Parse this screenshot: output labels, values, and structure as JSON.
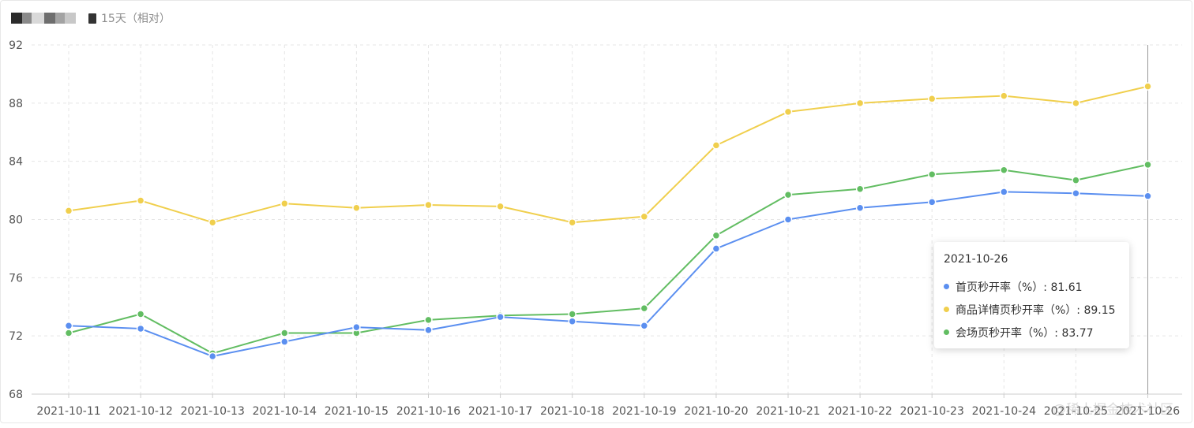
{
  "header": {
    "range_label": "15天（相对）"
  },
  "watermark": "@稀土掘金技术社区",
  "colors": {
    "blue": "#5b8ff0",
    "yellow": "#f0cf4d",
    "green": "#62bd62",
    "grid": "#e5e5e5",
    "axis": "#cccccc"
  },
  "chart_data": {
    "type": "line",
    "categories": [
      "2021-10-11",
      "2021-10-12",
      "2021-10-13",
      "2021-10-14",
      "2021-10-15",
      "2021-10-16",
      "2021-10-17",
      "2021-10-18",
      "2021-10-19",
      "2021-10-20",
      "2021-10-21",
      "2021-10-22",
      "2021-10-23",
      "2021-10-24",
      "2021-10-25",
      "2021-10-26"
    ],
    "yticks": [
      68,
      72,
      76,
      80,
      84,
      88,
      92
    ],
    "ylim": [
      68,
      92
    ],
    "grid": true,
    "series": [
      {
        "name": "商品详情页秒开率（%）",
        "color": "#f0cf4d",
        "values": [
          80.6,
          81.3,
          79.8,
          81.1,
          80.8,
          81.0,
          80.9,
          79.8,
          80.2,
          85.1,
          87.4,
          88.0,
          88.3,
          88.5,
          88.0,
          89.15
        ]
      },
      {
        "name": "会场页秒开率（%）",
        "color": "#62bd62",
        "values": [
          72.2,
          73.5,
          70.8,
          72.2,
          72.2,
          73.1,
          73.4,
          73.5,
          73.9,
          78.9,
          81.7,
          82.1,
          83.1,
          83.4,
          82.7,
          83.77
        ]
      },
      {
        "name": "首页秒开率（%）",
        "color": "#5b8ff0",
        "values": [
          72.7,
          72.5,
          70.6,
          71.6,
          72.6,
          72.4,
          73.3,
          73.0,
          72.7,
          78.0,
          80.0,
          80.8,
          81.2,
          81.9,
          81.8,
          81.61
        ]
      }
    ],
    "tooltip": {
      "title": "2021-10-26",
      "rows": [
        {
          "label": "首页秒开率（%）: 81.61",
          "color": "#5b8ff0"
        },
        {
          "label": "商品详情页秒开率（%）: 89.15",
          "color": "#f0cf4d"
        },
        {
          "label": "会场页秒开率（%）: 83.77",
          "color": "#62bd62"
        }
      ]
    }
  }
}
